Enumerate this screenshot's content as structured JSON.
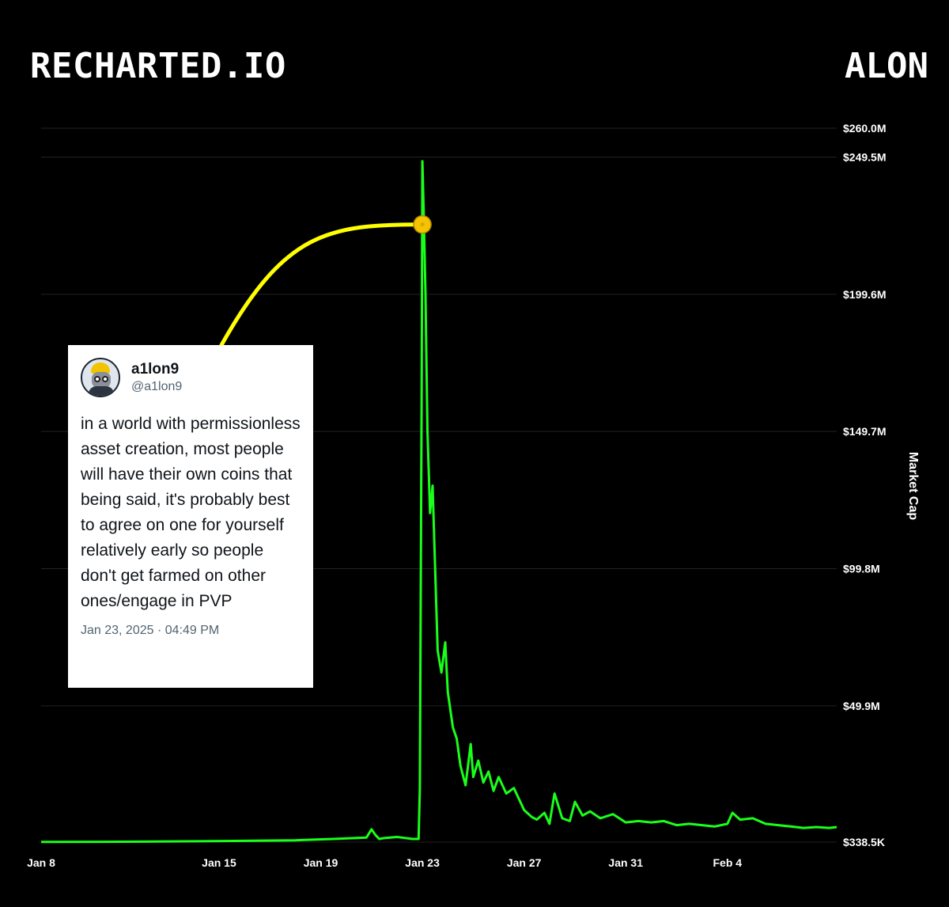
{
  "header": {
    "brand": "RECHARTED.IO",
    "ticker": "ALON"
  },
  "tweet": {
    "display_name": "a1lon9",
    "handle": "@a1lon9",
    "text": "in a world with permissionless asset creation, most people will have their own coins that being said, it's probably best to agree on one for yourself relatively early so people don't get farmed on other ones/engage in PVP",
    "date": "Jan 23, 2025 · 04:49 PM",
    "avatar_icon": "raccoon-hardhat-avatar-icon"
  },
  "colors": {
    "background": "#000000",
    "line": "#1aff1a",
    "annotation": "#ffff00",
    "marker": "#f5c400",
    "grid": "#222222"
  },
  "chart_data": {
    "type": "line",
    "ylabel": "Market Cap",
    "y_ticks": [
      "$260.0M",
      "$249.5M",
      "$199.6M",
      "$149.7M",
      "$99.8M",
      "$49.9M",
      "$338.5K"
    ],
    "y_tick_values": [
      260.0,
      249.5,
      199.6,
      149.7,
      99.8,
      49.9,
      0.3385
    ],
    "ylim": [
      0.3385,
      260.0
    ],
    "x_ticks": [
      "Jan 8",
      "Jan 15",
      "Jan 19",
      "Jan 23",
      "Jan 27",
      "Jan 31",
      "Feb 4"
    ],
    "x_tick_days": [
      8,
      15,
      19,
      23,
      27,
      31,
      35
    ],
    "xlim": [
      8,
      39.3
    ],
    "grid": true,
    "annotation_point": {
      "x": 23.0,
      "y": 225.0
    },
    "series": [
      {
        "x": [
          8,
          12,
          16,
          18,
          19.5,
          20.8,
          21.0,
          21.15,
          21.3,
          21.5,
          22.0,
          22.6,
          22.85,
          22.9,
          22.97,
          23.0,
          23.05,
          23.12,
          23.2,
          23.3,
          23.4,
          23.5,
          23.6,
          23.75,
          23.9,
          24.0,
          24.2,
          24.35,
          24.5,
          24.7,
          24.9,
          25.0,
          25.2,
          25.4,
          25.6,
          25.8,
          26.0,
          26.3,
          26.6,
          27.0,
          27.3,
          27.5,
          27.8,
          28.0,
          28.2,
          28.5,
          28.8,
          29.0,
          29.3,
          29.6,
          30.0,
          30.5,
          31.0,
          31.5,
          32.0,
          32.5,
          33.0,
          33.5,
          34.0,
          34.5,
          35.0,
          35.2,
          35.5,
          36.0,
          36.5,
          37.0,
          37.5,
          38.0,
          38.5,
          39.0,
          39.3
        ],
        "values": [
          0.4,
          0.5,
          0.8,
          1.0,
          1.5,
          2.0,
          5.0,
          3.0,
          1.5,
          1.8,
          2.2,
          1.5,
          1.5,
          20.0,
          160.0,
          248.0,
          230.0,
          200.0,
          150.0,
          120.0,
          130.0,
          100.0,
          70.0,
          62.0,
          73.0,
          55.0,
          42.0,
          38.0,
          28.0,
          21.0,
          36.0,
          24.0,
          30.0,
          22.0,
          26.0,
          19.0,
          24.0,
          18.0,
          20.0,
          12.0,
          9.5,
          8.5,
          11.0,
          7.0,
          18.0,
          9.0,
          8.0,
          15.0,
          10.0,
          11.5,
          9.0,
          10.5,
          7.5,
          8.0,
          7.5,
          8.0,
          6.5,
          7.0,
          6.5,
          6.0,
          7.0,
          11.0,
          8.5,
          9.0,
          7.0,
          6.5,
          6.0,
          5.5,
          5.8,
          5.5,
          5.8
        ]
      }
    ]
  }
}
